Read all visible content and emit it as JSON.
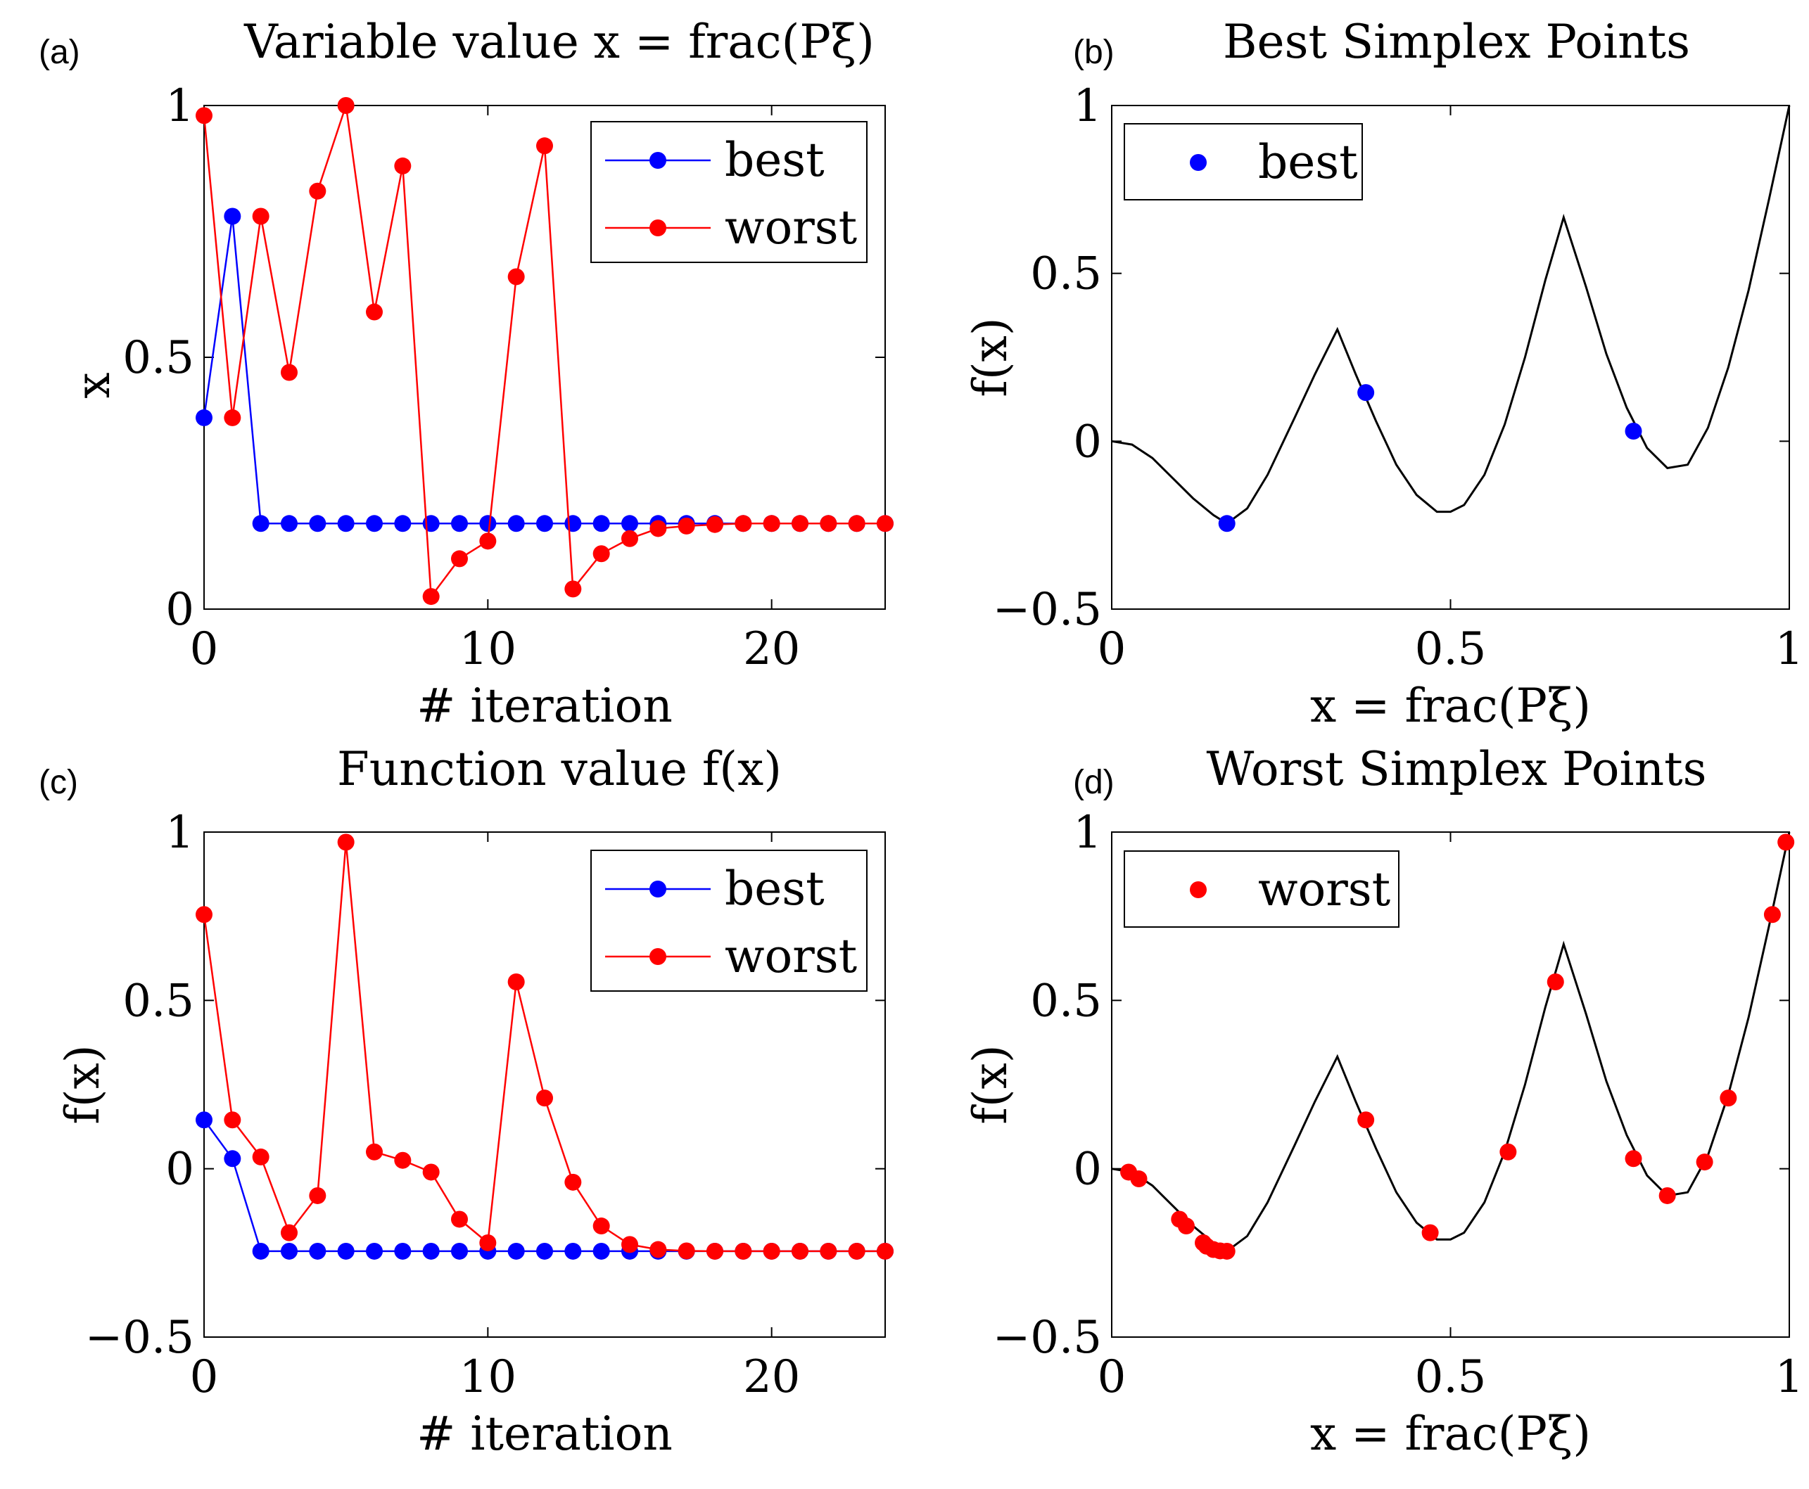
{
  "colors": {
    "best": "#0000FF",
    "worst": "#FF0000",
    "curve": "#000000",
    "axis": "#000000"
  },
  "chart_data": [
    {
      "id": "a",
      "panel_label": "(a)",
      "type": "line",
      "title": "Variable value x = frac(Pξ)",
      "xlabel": "# iteration",
      "ylabel": "x",
      "xlim": [
        0,
        24
      ],
      "ylim": [
        0,
        1
      ],
      "xticks": [
        0,
        10,
        20
      ],
      "yticks": [
        0,
        0.5,
        1
      ],
      "xtick_labels": [
        "0",
        "10",
        "20"
      ],
      "ytick_labels": [
        "0",
        "0.5",
        "1"
      ],
      "legend": {
        "position": "top-right",
        "entries": [
          "best",
          "worst"
        ]
      },
      "series": [
        {
          "name": "best",
          "color": "best",
          "x": [
            0,
            1,
            2,
            3,
            4,
            5,
            6,
            7,
            8,
            9,
            10,
            11,
            12,
            13,
            14,
            15,
            16,
            17,
            18,
            19,
            20,
            21,
            22,
            23,
            24
          ],
          "y": [
            0.38,
            0.78,
            0.17,
            0.17,
            0.17,
            0.17,
            0.17,
            0.17,
            0.17,
            0.17,
            0.17,
            0.17,
            0.17,
            0.17,
            0.17,
            0.17,
            0.17,
            0.17,
            0.17,
            0.17,
            0.17,
            0.17,
            0.17,
            0.17,
            0.17
          ]
        },
        {
          "name": "worst",
          "color": "worst",
          "x": [
            0,
            1,
            2,
            3,
            4,
            5,
            6,
            7,
            8,
            9,
            10,
            11,
            12,
            13,
            14,
            15,
            16,
            17,
            18,
            19,
            20,
            21,
            22,
            23,
            24
          ],
          "y": [
            0.98,
            0.38,
            0.78,
            0.47,
            0.83,
            1.0,
            0.59,
            0.88,
            0.025,
            0.1,
            0.135,
            0.66,
            0.92,
            0.04,
            0.11,
            0.14,
            0.16,
            0.165,
            0.168,
            0.17,
            0.17,
            0.17,
            0.17,
            0.17,
            0.17
          ]
        }
      ]
    },
    {
      "id": "b",
      "panel_label": "(b)",
      "type": "scatter",
      "title": "Best Simplex Points",
      "xlabel": "x = frac(Pξ)",
      "ylabel": "f(x)",
      "xlim": [
        0,
        1
      ],
      "ylim": [
        -0.5,
        1
      ],
      "xticks": [
        0,
        0.5,
        1
      ],
      "yticks": [
        -0.5,
        0,
        0.5,
        1
      ],
      "xtick_labels": [
        "0",
        "0.5",
        "1"
      ],
      "ytick_labels": [
        "−0.5",
        "0",
        "0.5",
        "1"
      ],
      "legend": {
        "position": "top-left",
        "entries": [
          "best"
        ]
      },
      "curve": {
        "x": [
          0,
          0.03,
          0.06,
          0.09,
          0.12,
          0.15,
          0.17,
          0.2,
          0.23,
          0.27,
          0.3,
          0.333,
          0.36,
          0.39,
          0.42,
          0.45,
          0.48,
          0.5,
          0.52,
          0.55,
          0.58,
          0.61,
          0.64,
          0.667,
          0.7,
          0.73,
          0.76,
          0.79,
          0.82,
          0.85,
          0.88,
          0.91,
          0.94,
          0.97,
          1.0
        ],
        "y": [
          0,
          -0.01,
          -0.05,
          -0.11,
          -0.17,
          -0.22,
          -0.245,
          -0.2,
          -0.1,
          0.07,
          0.2,
          0.333,
          0.2,
          0.06,
          -0.07,
          -0.16,
          -0.21,
          -0.21,
          -0.19,
          -0.1,
          0.05,
          0.25,
          0.48,
          0.667,
          0.46,
          0.26,
          0.1,
          -0.02,
          -0.08,
          -0.07,
          0.04,
          0.22,
          0.45,
          0.72,
          1.0
        ]
      },
      "series": [
        {
          "name": "best",
          "color": "best",
          "x": [
            0.17,
            0.375,
            0.77
          ],
          "y": [
            -0.245,
            0.145,
            0.03
          ]
        }
      ]
    },
    {
      "id": "c",
      "panel_label": "(c)",
      "type": "line",
      "title": "Function value f(x)",
      "xlabel": "# iteration",
      "ylabel": "f(x)",
      "xlim": [
        0,
        24
      ],
      "ylim": [
        -0.5,
        1
      ],
      "xticks": [
        0,
        10,
        20
      ],
      "yticks": [
        -0.5,
        0,
        0.5,
        1
      ],
      "xtick_labels": [
        "0",
        "10",
        "20"
      ],
      "ytick_labels": [
        "−0.5",
        "0",
        "0.5",
        "1"
      ],
      "legend": {
        "position": "top-right",
        "entries": [
          "best",
          "worst"
        ]
      },
      "series": [
        {
          "name": "best",
          "color": "best",
          "x": [
            0,
            1,
            2,
            3,
            4,
            5,
            6,
            7,
            8,
            9,
            10,
            11,
            12,
            13,
            14,
            15,
            16,
            17,
            18,
            19,
            20,
            21,
            22,
            23,
            24
          ],
          "y": [
            0.145,
            0.03,
            -0.245,
            -0.245,
            -0.245,
            -0.245,
            -0.245,
            -0.245,
            -0.245,
            -0.245,
            -0.245,
            -0.245,
            -0.245,
            -0.245,
            -0.245,
            -0.245,
            -0.245,
            -0.245,
            -0.245,
            -0.245,
            -0.245,
            -0.245,
            -0.245,
            -0.245,
            -0.245
          ]
        },
        {
          "name": "worst",
          "color": "worst",
          "x": [
            0,
            1,
            2,
            3,
            4,
            5,
            6,
            7,
            8,
            9,
            10,
            11,
            12,
            13,
            14,
            15,
            16,
            17,
            18,
            19,
            20,
            21,
            22,
            23,
            24
          ],
          "y": [
            0.755,
            0.145,
            0.035,
            -0.19,
            -0.08,
            0.97,
            0.05,
            0.025,
            -0.01,
            -0.15,
            -0.22,
            0.555,
            0.21,
            -0.04,
            -0.17,
            -0.225,
            -0.24,
            -0.244,
            -0.245,
            -0.245,
            -0.245,
            -0.245,
            -0.245,
            -0.245,
            -0.245
          ]
        }
      ]
    },
    {
      "id": "d",
      "panel_label": "(d)",
      "type": "scatter",
      "title": "Worst Simplex Points",
      "xlabel": "x = frac(Pξ)",
      "ylabel": "f(x)",
      "xlim": [
        0,
        1
      ],
      "ylim": [
        -0.5,
        1
      ],
      "xticks": [
        0,
        0.5,
        1
      ],
      "yticks": [
        -0.5,
        0,
        0.5,
        1
      ],
      "xtick_labels": [
        "0",
        "0.5",
        "1"
      ],
      "ytick_labels": [
        "−0.5",
        "0",
        "0.5",
        "1"
      ],
      "legend": {
        "position": "top-left",
        "entries": [
          "worst"
        ]
      },
      "curve": {
        "x": [
          0,
          0.03,
          0.06,
          0.09,
          0.12,
          0.15,
          0.17,
          0.2,
          0.23,
          0.27,
          0.3,
          0.333,
          0.36,
          0.39,
          0.42,
          0.45,
          0.48,
          0.5,
          0.52,
          0.55,
          0.58,
          0.61,
          0.64,
          0.667,
          0.7,
          0.73,
          0.76,
          0.79,
          0.82,
          0.85,
          0.88,
          0.91,
          0.94,
          0.97,
          1.0
        ],
        "y": [
          0,
          -0.01,
          -0.05,
          -0.11,
          -0.17,
          -0.22,
          -0.245,
          -0.2,
          -0.1,
          0.07,
          0.2,
          0.333,
          0.2,
          0.06,
          -0.07,
          -0.16,
          -0.21,
          -0.21,
          -0.19,
          -0.1,
          0.05,
          0.25,
          0.48,
          0.667,
          0.46,
          0.26,
          0.1,
          -0.02,
          -0.08,
          -0.07,
          0.04,
          0.22,
          0.45,
          0.72,
          1.0
        ]
      },
      "series": [
        {
          "name": "worst",
          "color": "worst",
          "x": [
            0.025,
            0.04,
            0.1,
            0.11,
            0.135,
            0.14,
            0.15,
            0.16,
            0.17,
            0.375,
            0.47,
            0.585,
            0.655,
            0.77,
            0.82,
            0.875,
            0.91,
            0.975,
            0.995
          ],
          "y": [
            -0.01,
            -0.03,
            -0.15,
            -0.17,
            -0.22,
            -0.23,
            -0.24,
            -0.244,
            -0.245,
            0.145,
            -0.19,
            0.05,
            0.555,
            0.03,
            -0.08,
            0.02,
            0.21,
            0.755,
            0.97
          ]
        }
      ]
    }
  ]
}
